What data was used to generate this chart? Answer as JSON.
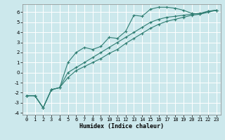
{
  "xlabel": "Humidex (Indice chaleur)",
  "bg_color": "#cce8ec",
  "grid_color": "#ffffff",
  "line_color": "#2e7d72",
  "xlim": [
    -0.5,
    23.5
  ],
  "ylim": [
    -4.2,
    6.8
  ],
  "xticks": [
    0,
    1,
    2,
    3,
    4,
    5,
    6,
    7,
    8,
    9,
    10,
    11,
    12,
    13,
    14,
    15,
    16,
    17,
    18,
    19,
    20,
    21,
    22,
    23
  ],
  "yticks": [
    -4,
    -3,
    -2,
    -1,
    0,
    1,
    2,
    3,
    4,
    5,
    6
  ],
  "curve1_x": [
    0,
    1,
    2,
    3,
    4,
    5,
    6,
    7,
    8,
    9,
    10,
    11,
    12,
    13,
    14,
    15,
    16,
    17,
    18,
    19,
    20,
    21,
    22,
    23
  ],
  "curve1_y": [
    -2.3,
    -2.3,
    -3.5,
    -1.7,
    -1.5,
    1.0,
    2.0,
    2.5,
    2.3,
    2.6,
    3.5,
    3.4,
    4.1,
    5.7,
    5.6,
    6.3,
    6.5,
    6.5,
    6.4,
    6.2,
    5.9,
    5.8,
    6.1,
    6.2
  ],
  "curve2_x": [
    0,
    1,
    2,
    3,
    4,
    5,
    6,
    7,
    8,
    9,
    10,
    11,
    12,
    13,
    14,
    15,
    16,
    17,
    18,
    19,
    20,
    21,
    22,
    23
  ],
  "curve2_y": [
    -2.3,
    -2.3,
    -3.5,
    -1.7,
    -1.5,
    0.0,
    0.5,
    1.0,
    1.5,
    2.0,
    2.5,
    3.0,
    3.5,
    4.0,
    4.5,
    5.0,
    5.3,
    5.5,
    5.6,
    5.7,
    5.8,
    5.9,
    6.1,
    6.2
  ],
  "curve3_x": [
    0,
    1,
    2,
    3,
    4,
    5,
    6,
    7,
    8,
    9,
    10,
    11,
    12,
    13,
    14,
    15,
    16,
    17,
    18,
    19,
    20,
    21,
    22,
    23
  ],
  "curve3_y": [
    -2.3,
    -2.3,
    -3.5,
    -1.7,
    -1.5,
    -0.5,
    0.2,
    0.6,
    1.0,
    1.4,
    1.9,
    2.3,
    2.9,
    3.4,
    3.9,
    4.4,
    4.8,
    5.1,
    5.3,
    5.5,
    5.7,
    5.8,
    6.0,
    6.2
  ],
  "xlabel_fontsize": 6,
  "tick_fontsize": 5,
  "lw": 0.8,
  "marker_size": 2.5
}
